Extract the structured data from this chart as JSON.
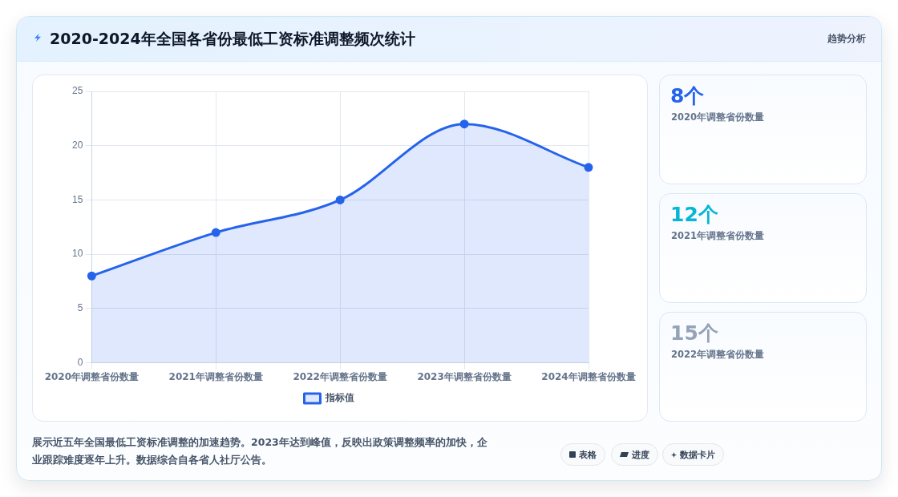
{
  "chart_data": [
    {
      "type": "area",
      "title": "2020-2024年全国各省份最低工资标准调整频次统计",
      "categories": [
        "2020年调整省份数量",
        "2021年调整省份数量",
        "2022年调整省份数量",
        "2023年调整省份数量",
        "2024年调整省份数量"
      ],
      "series": [
        {
          "name": "指标值",
          "color": "#2563eb",
          "values": [
            8,
            12,
            15,
            22,
            18
          ]
        }
      ],
      "ylim": [
        0,
        25
      ],
      "yticks": [
        0,
        5,
        10,
        15,
        20,
        25
      ],
      "grid": true,
      "legend": "bottom",
      "marker": "circle",
      "annotations": [
        "展示近五年全国最低工资标准调整的加速趋势。2023年达到峰值，反映出政策调整频率的加快，企业跟踪难度逐年上升。数据综合自各省人社厅公告。",
        "表格",
        "进度",
        "数据卡片"
      ]
    },
    {
      "type": "other",
      "title": "趋势分析",
      "annotations": [
        "8个",
        "2020年调整省份数量",
        "12个",
        "2021年调整省份数量",
        "15个",
        "2022年调整省份数量"
      ]
    }
  ]
}
